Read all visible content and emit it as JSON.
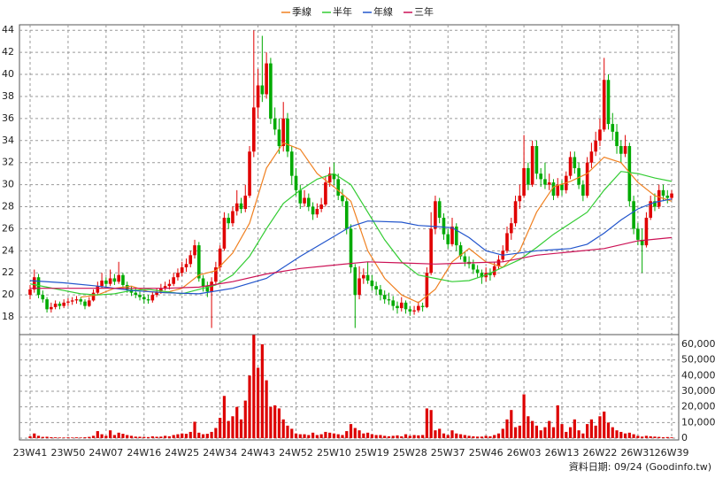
{
  "chart_data": {
    "type": "candlestick",
    "source": "資料日期: 09/24 (Goodinfo.tw)",
    "categories": [
      "23W41",
      null,
      null,
      null,
      null,
      null,
      null,
      null,
      null,
      "23W50",
      null,
      null,
      null,
      null,
      null,
      null,
      null,
      null,
      "24W07",
      null,
      null,
      null,
      null,
      null,
      null,
      null,
      null,
      "24W16",
      null,
      null,
      null,
      null,
      null,
      null,
      null,
      null,
      "24W25",
      null,
      null,
      null,
      null,
      null,
      null,
      null,
      null,
      "24W34",
      null,
      null,
      null,
      null,
      null,
      null,
      null,
      null,
      "24W43",
      null,
      null,
      null,
      null,
      null,
      null,
      null,
      null,
      "24W52",
      null,
      null,
      null,
      null,
      null,
      null,
      null,
      null,
      "25W10",
      null,
      null,
      null,
      null,
      null,
      null,
      null,
      null,
      "25W19",
      null,
      null,
      null,
      null,
      null,
      null,
      null,
      null,
      "25W28",
      null,
      null,
      null,
      null,
      null,
      null,
      null,
      null,
      "25W37",
      null,
      null,
      null,
      null,
      null,
      null,
      null,
      null,
      "25W46",
      null,
      null,
      null,
      null,
      null,
      null,
      null,
      null,
      "26W03",
      null,
      null,
      null,
      null,
      null,
      null,
      null,
      null,
      "26W13",
      null,
      null,
      null,
      null,
      null,
      null,
      null,
      null,
      "26W22",
      null,
      null,
      null,
      null,
      null,
      null,
      null,
      null,
      "26W31",
      null,
      null,
      null,
      null,
      null,
      null,
      null,
      "26W39"
    ],
    "ohlc": [
      [
        20.0,
        20.9,
        19.6,
        20.5
      ],
      [
        20.5,
        22.3,
        20.2,
        21.6
      ],
      [
        21.6,
        21.9,
        19.7,
        20.0
      ],
      [
        20.0,
        20.4,
        19.3,
        19.6
      ],
      [
        19.6,
        19.8,
        18.4,
        18.7
      ],
      [
        18.7,
        19.3,
        18.4,
        18.9
      ],
      [
        18.9,
        19.5,
        18.7,
        19.2
      ],
      [
        19.2,
        19.4,
        18.7,
        19.0
      ],
      [
        19.0,
        19.6,
        18.8,
        19.3
      ],
      [
        19.3,
        19.7,
        19.0,
        19.4
      ],
      [
        19.4,
        19.8,
        19.1,
        19.5
      ],
      [
        19.5,
        19.9,
        19.2,
        19.6
      ],
      [
        19.6,
        19.8,
        19.1,
        19.4
      ],
      [
        19.4,
        19.6,
        18.7,
        19.0
      ],
      [
        19.0,
        19.8,
        18.9,
        19.5
      ],
      [
        19.5,
        20.5,
        19.4,
        20.2
      ],
      [
        20.2,
        21.2,
        20.0,
        20.8
      ],
      [
        20.8,
        22.0,
        20.6,
        21.3
      ],
      [
        21.3,
        21.6,
        20.6,
        21.0
      ],
      [
        21.0,
        22.3,
        20.8,
        21.5
      ],
      [
        21.5,
        21.9,
        20.9,
        21.2
      ],
      [
        21.2,
        23.0,
        21.0,
        21.8
      ],
      [
        21.8,
        22.0,
        20.6,
        20.9
      ],
      [
        20.9,
        21.2,
        20.2,
        20.5
      ],
      [
        20.5,
        20.8,
        19.9,
        20.2
      ],
      [
        20.2,
        20.6,
        19.7,
        20.0
      ],
      [
        20.0,
        20.3,
        19.5,
        19.8
      ],
      [
        19.8,
        20.1,
        19.2,
        19.6
      ],
      [
        19.6,
        20.0,
        19.2,
        19.5
      ],
      [
        19.5,
        20.3,
        19.3,
        20.0
      ],
      [
        20.0,
        20.6,
        19.8,
        20.3
      ],
      [
        20.3,
        21.0,
        20.1,
        20.6
      ],
      [
        20.6,
        21.2,
        20.4,
        20.8
      ],
      [
        20.8,
        21.4,
        20.5,
        21.0
      ],
      [
        21.0,
        22.0,
        20.8,
        21.6
      ],
      [
        21.6,
        22.4,
        21.3,
        22.0
      ],
      [
        22.0,
        23.0,
        21.7,
        22.5
      ],
      [
        22.5,
        23.3,
        22.1,
        22.8
      ],
      [
        22.8,
        24.0,
        22.5,
        23.6
      ],
      [
        23.6,
        25.0,
        23.3,
        24.5
      ],
      [
        24.5,
        24.8,
        21.2,
        21.5
      ],
      [
        21.5,
        21.8,
        20.3,
        20.8
      ],
      [
        20.8,
        21.2,
        19.8,
        20.3
      ],
      [
        20.3,
        21.6,
        17.0,
        21.2
      ],
      [
        21.2,
        23.0,
        21.0,
        22.5
      ],
      [
        22.5,
        24.5,
        22.2,
        24.2
      ],
      [
        24.2,
        27.5,
        24.0,
        27.0
      ],
      [
        27.0,
        27.4,
        26.0,
        26.5
      ],
      [
        26.5,
        28.0,
        26.2,
        27.6
      ],
      [
        27.6,
        29.5,
        27.2,
        28.3
      ],
      [
        28.3,
        28.8,
        27.4,
        27.8
      ],
      [
        27.8,
        30.0,
        27.5,
        29.0
      ],
      [
        29.0,
        33.5,
        28.8,
        33.0
      ],
      [
        33.0,
        44.0,
        32.5,
        37.0
      ],
      [
        37.0,
        40.5,
        36.0,
        39.0
      ],
      [
        39.0,
        43.5,
        37.5,
        38.2
      ],
      [
        38.2,
        42.0,
        37.8,
        41.0
      ],
      [
        41.0,
        41.5,
        35.5,
        36.0
      ],
      [
        36.0,
        37.0,
        34.5,
        35.0
      ],
      [
        35.0,
        36.0,
        32.8,
        33.5
      ],
      [
        33.5,
        37.5,
        33.0,
        36.0
      ],
      [
        36.0,
        36.5,
        32.5,
        33.0
      ],
      [
        33.0,
        33.5,
        30.0,
        30.8
      ],
      [
        30.8,
        31.5,
        29.0,
        29.5
      ],
      [
        29.5,
        30.0,
        27.8,
        28.3
      ],
      [
        28.3,
        29.5,
        28.0,
        28.8
      ],
      [
        28.8,
        29.2,
        27.6,
        28.0
      ],
      [
        28.0,
        28.4,
        26.8,
        27.3
      ],
      [
        27.3,
        28.3,
        27.0,
        27.8
      ],
      [
        27.8,
        28.8,
        27.5,
        28.2
      ],
      [
        28.2,
        30.8,
        28.0,
        30.2
      ],
      [
        30.2,
        31.6,
        29.8,
        31.0
      ],
      [
        31.0,
        32.0,
        30.0,
        30.5
      ],
      [
        30.5,
        31.0,
        28.6,
        29.0
      ],
      [
        29.0,
        29.6,
        28.0,
        28.5
      ],
      [
        28.5,
        28.8,
        25.5,
        26.0
      ],
      [
        26.0,
        26.4,
        22.0,
        22.5
      ],
      [
        22.5,
        22.8,
        17.0,
        20.0
      ],
      [
        20.0,
        22.6,
        19.6,
        21.5
      ],
      [
        21.5,
        22.4,
        21.0,
        21.8
      ],
      [
        21.8,
        23.0,
        21.0,
        21.3
      ],
      [
        21.3,
        21.8,
        20.4,
        20.8
      ],
      [
        20.8,
        21.2,
        20.0,
        20.5
      ],
      [
        20.5,
        20.9,
        19.5,
        20.0
      ],
      [
        20.0,
        20.4,
        19.2,
        19.6
      ],
      [
        19.6,
        20.2,
        19.1,
        19.5
      ],
      [
        19.5,
        19.9,
        18.6,
        19.0
      ],
      [
        19.0,
        19.4,
        18.3,
        18.8
      ],
      [
        18.8,
        19.8,
        18.5,
        19.3
      ],
      [
        19.3,
        19.5,
        18.3,
        18.7
      ],
      [
        18.7,
        19.0,
        18.1,
        18.5
      ],
      [
        18.5,
        19.0,
        18.2,
        18.6
      ],
      [
        18.6,
        19.4,
        18.4,
        19.0
      ],
      [
        19.0,
        19.3,
        18.5,
        18.9
      ],
      [
        18.9,
        22.5,
        18.8,
        22.0
      ],
      [
        22.0,
        27.5,
        21.8,
        26.0
      ],
      [
        26.0,
        29.0,
        25.5,
        28.5
      ],
      [
        28.5,
        28.8,
        26.5,
        27.0
      ],
      [
        27.0,
        27.4,
        25.0,
        25.5
      ],
      [
        25.5,
        26.0,
        24.2,
        24.6
      ],
      [
        24.6,
        27.0,
        24.4,
        26.2
      ],
      [
        26.2,
        26.5,
        24.0,
        24.5
      ],
      [
        24.5,
        24.8,
        23.2,
        23.5
      ],
      [
        23.5,
        23.9,
        22.6,
        23.0
      ],
      [
        23.0,
        23.5,
        22.4,
        22.8
      ],
      [
        22.8,
        23.2,
        21.9,
        22.3
      ],
      [
        22.3,
        22.7,
        21.6,
        22.0
      ],
      [
        22.0,
        22.3,
        21.0,
        21.6
      ],
      [
        21.6,
        22.5,
        21.2,
        22.0
      ],
      [
        22.0,
        22.4,
        21.3,
        21.8
      ],
      [
        21.8,
        23.0,
        21.6,
        22.6
      ],
      [
        22.6,
        23.6,
        22.3,
        23.2
      ],
      [
        23.2,
        24.5,
        23.0,
        24.0
      ],
      [
        24.0,
        26.2,
        23.8,
        25.6
      ],
      [
        25.6,
        27.0,
        25.0,
        26.5
      ],
      [
        26.5,
        29.0,
        26.2,
        28.5
      ],
      [
        28.5,
        30.0,
        27.8,
        29.0
      ],
      [
        29.0,
        34.5,
        28.8,
        31.5
      ],
      [
        31.5,
        32.0,
        29.5,
        30.0
      ],
      [
        30.0,
        34.0,
        29.8,
        33.5
      ],
      [
        33.5,
        34.0,
        30.5,
        31.0
      ],
      [
        31.0,
        31.5,
        29.8,
        30.5
      ],
      [
        30.5,
        32.0,
        29.6,
        30.0
      ],
      [
        30.0,
        31.0,
        29.5,
        30.2
      ],
      [
        30.2,
        30.5,
        28.6,
        29.0
      ],
      [
        29.0,
        30.6,
        28.8,
        30.0
      ],
      [
        30.0,
        30.4,
        29.0,
        29.5
      ],
      [
        29.5,
        31.2,
        29.2,
        30.8
      ],
      [
        30.8,
        33.0,
        30.5,
        32.5
      ],
      [
        32.5,
        33.0,
        31.0,
        31.5
      ],
      [
        31.5,
        32.0,
        29.6,
        30.0
      ],
      [
        30.0,
        30.4,
        28.5,
        29.0
      ],
      [
        29.0,
        32.5,
        28.8,
        32.0
      ],
      [
        32.0,
        33.8,
        31.5,
        33.0
      ],
      [
        33.0,
        34.8,
        32.6,
        34.0
      ],
      [
        34.0,
        36.0,
        33.5,
        35.0
      ],
      [
        35.0,
        41.5,
        34.8,
        39.5
      ],
      [
        39.5,
        40.0,
        35.0,
        35.5
      ],
      [
        35.5,
        36.5,
        34.0,
        34.8
      ],
      [
        34.8,
        35.5,
        32.8,
        33.5
      ],
      [
        33.5,
        34.0,
        32.0,
        32.8
      ],
      [
        32.8,
        34.5,
        32.5,
        33.5
      ],
      [
        33.5,
        33.8,
        28.0,
        28.5
      ],
      [
        28.5,
        29.0,
        25.5,
        26.0
      ],
      [
        26.0,
        26.5,
        24.5,
        25.0
      ],
      [
        25.0,
        26.0,
        22.0,
        24.5
      ],
      [
        24.5,
        27.5,
        24.3,
        27.0
      ],
      [
        27.0,
        29.0,
        26.8,
        28.5
      ],
      [
        28.5,
        29.2,
        27.6,
        28.0
      ],
      [
        28.0,
        30.0,
        27.8,
        29.5
      ],
      [
        29.5,
        30.0,
        28.5,
        29.0
      ],
      [
        29.0,
        29.5,
        28.3,
        28.8
      ],
      [
        28.8,
        29.5,
        28.6,
        29.2
      ]
    ],
    "volume": [
      1200,
      3000,
      1500,
      800,
      900,
      600,
      500,
      400,
      400,
      500,
      400,
      500,
      400,
      600,
      800,
      1500,
      4500,
      2500,
      1500,
      5000,
      2000,
      3500,
      2800,
      2000,
      1500,
      1000,
      900,
      800,
      700,
      1200,
      900,
      1000,
      1500,
      1200,
      2000,
      2500,
      3000,
      2800,
      4000,
      10500,
      3500,
      2500,
      2800,
      4000,
      6500,
      13000,
      27000,
      11000,
      14000,
      20000,
      12000,
      24000,
      40000,
      66000,
      45000,
      60000,
      37000,
      20000,
      21000,
      19000,
      12000,
      8000,
      6000,
      3000,
      2500,
      2500,
      2000,
      3500,
      2000,
      2500,
      4000,
      3500,
      3000,
      2500,
      2000,
      4500,
      9000,
      6500,
      5000,
      3000,
      3500,
      2500,
      2000,
      2000,
      1500,
      1200,
      1500,
      1800,
      1200,
      2500,
      1500,
      2000,
      1800,
      2000,
      19000,
      18000,
      5000,
      6000,
      3000,
      2000,
      5000,
      3000,
      2500,
      2000,
      1500,
      1200,
      1000,
      1000,
      1500,
      1200,
      2000,
      3000,
      6000,
      12000,
      18000,
      7000,
      8000,
      28000,
      14000,
      11000,
      8000,
      5000,
      7000,
      11000,
      7000,
      21000,
      9000,
      4000,
      7000,
      12000,
      5000,
      3000,
      9000,
      12000,
      8000,
      14000,
      17000,
      10000,
      7000,
      5000,
      4000,
      3000,
      3500,
      2500,
      1500,
      1000,
      1500,
      1200,
      1000,
      800,
      600,
      700,
      500
    ],
    "series": [
      {
        "name": "季線",
        "color": "#f08020",
        "x": [
          12,
          16,
          20,
          24,
          28,
          32,
          36,
          40,
          44,
          48,
          52,
          56,
          60,
          64,
          68,
          72,
          76,
          80,
          84,
          88,
          92,
          96,
          100,
          104,
          108,
          112,
          116,
          120,
          124,
          128,
          132,
          136,
          140,
          144,
          148,
          152
        ],
        "values": [
          19.8,
          20.0,
          20.6,
          20.8,
          20.3,
          20.2,
          20.6,
          21.8,
          22.2,
          23.8,
          26.5,
          31.5,
          33.8,
          33.2,
          31.0,
          29.8,
          28.5,
          24.0,
          21.5,
          20.0,
          19.3,
          20.5,
          23.0,
          24.2,
          23.0,
          22.5,
          24.0,
          27.5,
          29.8,
          30.3,
          31.0,
          32.5,
          32.0,
          30.2,
          29.0,
          28.5
        ]
      },
      {
        "name": "半年",
        "color": "#33cc33",
        "x": [
          0,
          4,
          8,
          12,
          16,
          20,
          24,
          28,
          32,
          36,
          40,
          44,
          48,
          52,
          56,
          60,
          64,
          68,
          72,
          76,
          80,
          84,
          88,
          92,
          96,
          100,
          104,
          108,
          112,
          116,
          120,
          124,
          128,
          132,
          136,
          140,
          144,
          148,
          152
        ],
        "values": [
          21.0,
          20.7,
          20.4,
          20.1,
          20.0,
          20.1,
          20.4,
          20.5,
          20.3,
          20.1,
          20.5,
          20.9,
          21.8,
          23.5,
          26.0,
          28.3,
          29.5,
          30.5,
          31.0,
          30.0,
          27.5,
          25.0,
          23.0,
          21.8,
          21.5,
          21.2,
          21.3,
          21.8,
          22.5,
          23.2,
          24.3,
          25.5,
          26.5,
          27.5,
          29.5,
          31.2,
          31.0,
          30.6,
          30.3
        ]
      },
      {
        "name": "年線",
        "color": "#2255cc",
        "x": [
          0,
          8,
          16,
          24,
          32,
          40,
          48,
          56,
          64,
          72,
          76,
          80,
          88,
          92,
          96,
          100,
          104,
          108,
          112,
          116,
          120,
          128,
          132,
          136,
          140,
          144,
          148,
          152
        ],
        "values": [
          21.3,
          21.1,
          20.8,
          20.4,
          20.2,
          20.1,
          20.6,
          21.5,
          23.5,
          25.3,
          26.2,
          26.7,
          26.6,
          26.3,
          26.2,
          26.1,
          25.2,
          24.0,
          23.6,
          23.8,
          24.0,
          24.2,
          24.6,
          25.6,
          26.8,
          27.8,
          28.4,
          28.7
        ]
      },
      {
        "name": "三年",
        "color": "#cc1155",
        "x": [
          0,
          8,
          16,
          24,
          32,
          40,
          48,
          56,
          64,
          72,
          80,
          88,
          96,
          104,
          112,
          120,
          128,
          136,
          144,
          152
        ],
        "values": [
          20.6,
          20.6,
          20.6,
          20.6,
          20.6,
          20.7,
          21.2,
          21.9,
          22.4,
          22.7,
          23.0,
          22.9,
          22.8,
          22.9,
          23.0,
          23.6,
          23.9,
          24.2,
          24.9,
          25.2
        ]
      }
    ],
    "up_color": "#e00000",
    "down_color": "#00aa00",
    "volume_color": "#dd0000",
    "ylim": [
      16.4,
      44.5
    ],
    "yticks": [
      18,
      20,
      22,
      24,
      26,
      28,
      30,
      32,
      34,
      36,
      38,
      40,
      42,
      44
    ],
    "y2lim": [
      0,
      66200
    ],
    "y2ticks": [
      0,
      {
        "value": 10000,
        "label": "10,000"
      },
      {
        "value": 20000,
        "label": "20,000"
      },
      {
        "value": 30000,
        "label": "30,000"
      },
      {
        "value": 40000,
        "label": "40,000"
      },
      {
        "value": 50000,
        "label": "50,000"
      },
      {
        "value": 60000,
        "label": "60,000"
      }
    ],
    "grid": true
  }
}
